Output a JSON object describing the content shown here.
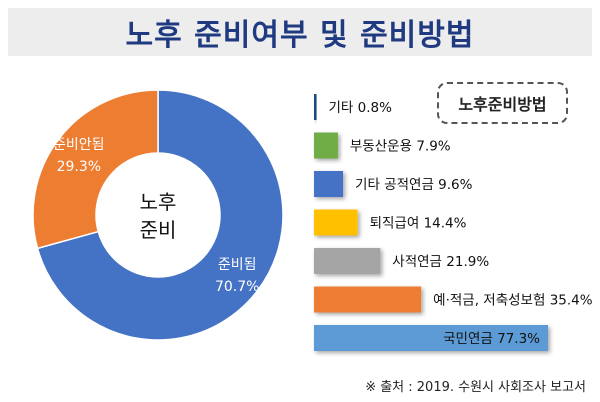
{
  "title": "노후 준비여부 및 준비방법",
  "source": "※ 출처 : 2019. 수원시 사회조사 보고서",
  "chart_data": [
    {
      "type": "pie",
      "subtype": "donut",
      "center_label_line1": "노후",
      "center_label_line2": "준비",
      "slices": [
        {
          "name": "준비됨",
          "value": 70.7,
          "label": "70.7%",
          "color": "#4472c4"
        },
        {
          "name": "준비안됨",
          "value": 29.3,
          "label": "29.3%",
          "color": "#ed7d31"
        }
      ]
    },
    {
      "type": "bar",
      "orientation": "horizontal",
      "title": "노후준비방법",
      "xlim": [
        0,
        80
      ],
      "bars": [
        {
          "category": "기타",
          "value": 0.8,
          "label": "0.8%",
          "color": "#1f4e79"
        },
        {
          "category": "부동산운용",
          "value": 7.9,
          "label": "7.9%",
          "color": "#70ad47"
        },
        {
          "category": "기타 공적연금",
          "value": 9.6,
          "label": "9.6%",
          "color": "#4472c4"
        },
        {
          "category": "퇴직급여",
          "value": 14.4,
          "label": "14.4%",
          "color": "#ffc000"
        },
        {
          "category": "사적연금",
          "value": 21.9,
          "label": "21.9%",
          "color": "#a5a5a5"
        },
        {
          "category": "예·적금, 저축성보험",
          "value": 35.4,
          "label": "35.4%",
          "color": "#ed7d31"
        },
        {
          "category": "국민연금",
          "value": 77.3,
          "label": "77.3%",
          "color": "#5b9bd5"
        }
      ]
    }
  ]
}
